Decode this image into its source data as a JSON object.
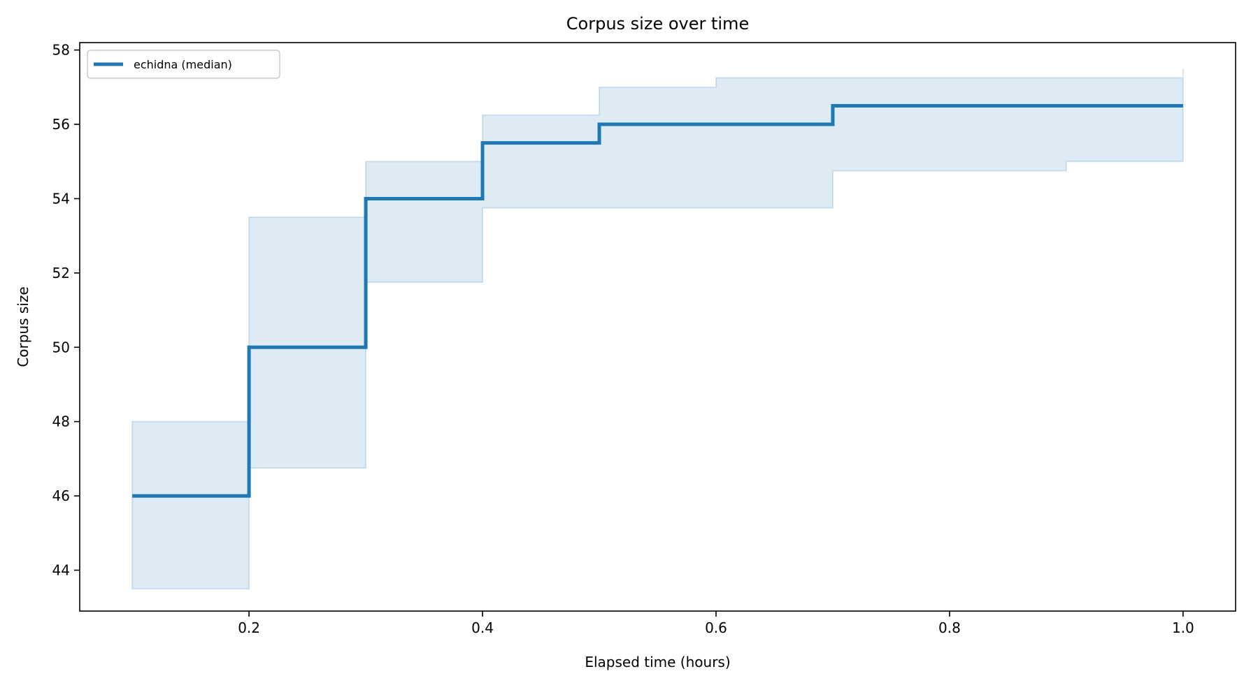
{
  "chart_data": {
    "type": "line",
    "title": "Corpus size over time",
    "xlabel": "Elapsed time (hours)",
    "ylabel": "Corpus size",
    "xlim": [
      0.055,
      1.045
    ],
    "ylim": [
      42.9,
      58.2
    ],
    "xticks": [
      0.2,
      0.4,
      0.6,
      0.8,
      1.0
    ],
    "xtick_labels": [
      "0.2",
      "0.4",
      "0.6",
      "0.8",
      "1.0"
    ],
    "yticks": [
      44,
      46,
      48,
      50,
      52,
      54,
      56,
      58
    ],
    "ytick_labels": [
      "44",
      "46",
      "48",
      "50",
      "52",
      "54",
      "56",
      "58"
    ],
    "grid": false,
    "legend": {
      "placement": "top-left",
      "entries": [
        "echidna (median)"
      ]
    },
    "step": "post",
    "series": [
      {
        "name": "echidna (median)",
        "color": "#1f77b4",
        "x": [
          0.1,
          0.2,
          0.3,
          0.4,
          0.5,
          0.6,
          0.7,
          0.8,
          0.9,
          1.0
        ],
        "y": [
          46,
          50,
          54,
          55.5,
          56,
          56,
          56.5,
          56.5,
          56.5,
          56.5
        ]
      }
    ],
    "band": {
      "color": "#1f77b4",
      "opacity": 0.15,
      "x": [
        0.1,
        0.2,
        0.3,
        0.4,
        0.5,
        0.6,
        0.7,
        0.8,
        0.9,
        1.0
      ],
      "lower": [
        43.5,
        46.75,
        51.75,
        53.75,
        53.75,
        53.75,
        54.75,
        54.75,
        55,
        55
      ],
      "upper": [
        48,
        53.5,
        55,
        56.25,
        57,
        57.25,
        57.25,
        57.25,
        57.25,
        57.5
      ]
    }
  }
}
